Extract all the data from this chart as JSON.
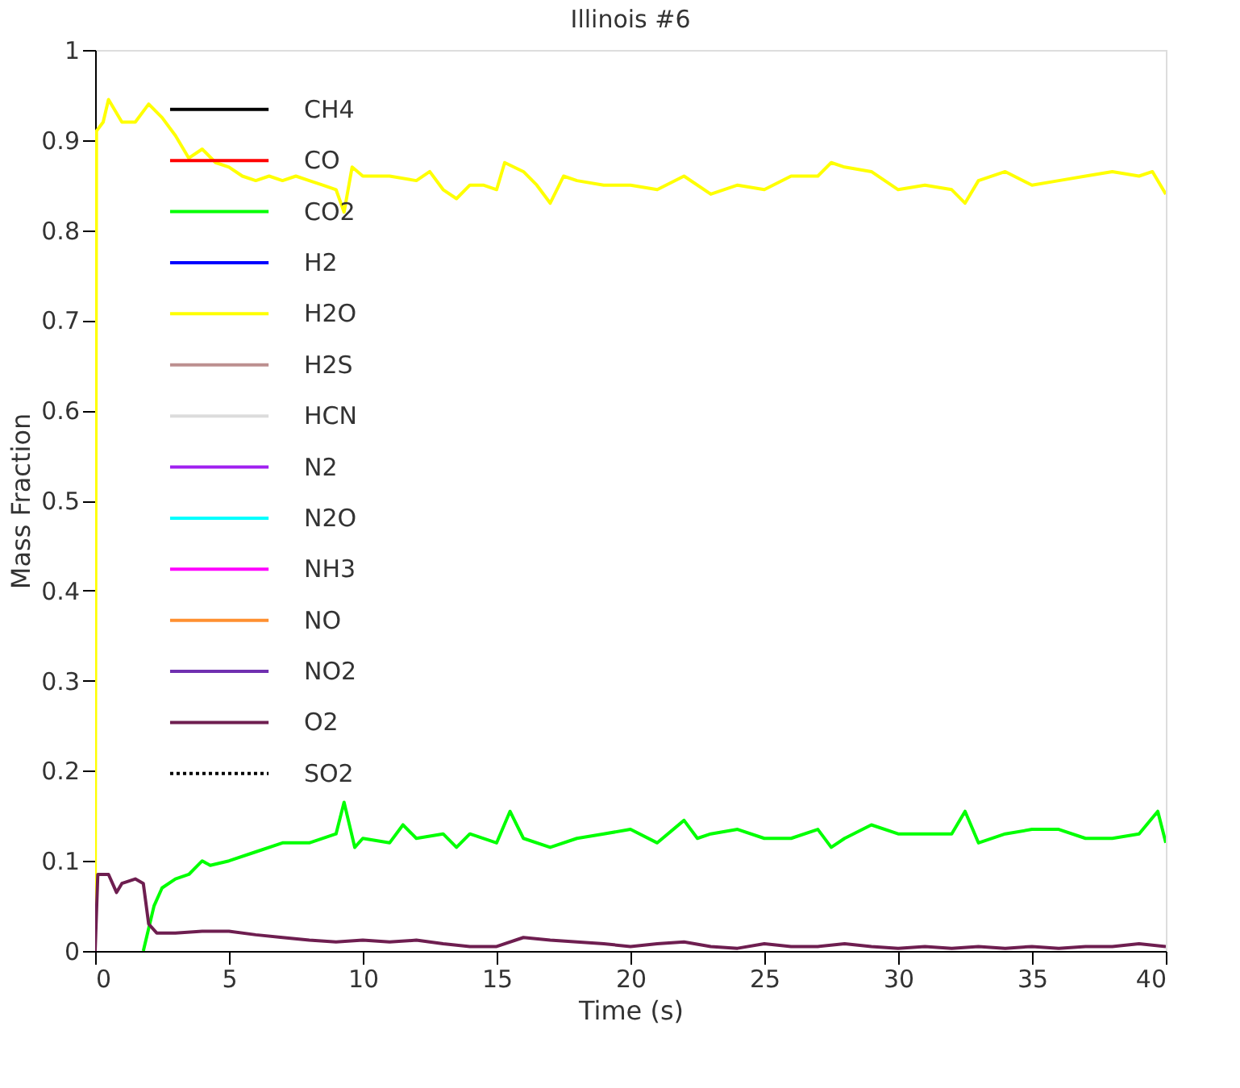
{
  "chart_data": {
    "type": "line",
    "title": "Illinois #6",
    "xlabel": "Time (s)",
    "ylabel": "Mass Fraction",
    "xlim": [
      0,
      40
    ],
    "xticks": [
      0,
      5,
      10,
      15,
      20,
      25,
      30,
      35,
      40
    ],
    "ylim": [
      0,
      1
    ],
    "yticks": [
      0,
      0.1,
      0.2,
      0.3,
      0.4,
      0.5,
      0.6,
      0.7,
      0.8,
      0.9,
      1
    ],
    "grid": false,
    "legend": "top left",
    "marker": "none",
    "series": [
      {
        "name": "CH4",
        "color": "#000000"
      },
      {
        "name": "CO",
        "color": "#ff0000"
      },
      {
        "name": "CO2",
        "color": "#00ff00",
        "x": [
          1.8,
          2.2,
          2.5,
          3,
          3.5,
          4,
          4.3,
          5,
          6,
          7,
          8,
          9,
          9.3,
          9.7,
          10,
          11,
          11.5,
          12,
          13,
          13.5,
          14,
          15,
          15.5,
          16,
          17,
          18,
          19,
          20,
          21,
          22,
          22.5,
          23,
          24,
          25,
          26,
          27,
          27.5,
          28,
          29,
          30,
          31,
          32,
          32.5,
          33,
          34,
          35,
          36,
          37,
          38,
          39,
          39.7,
          40
        ],
        "values": [
          0,
          0.05,
          0.07,
          0.08,
          0.085,
          0.1,
          0.095,
          0.1,
          0.11,
          0.12,
          0.12,
          0.13,
          0.165,
          0.115,
          0.125,
          0.12,
          0.14,
          0.125,
          0.13,
          0.115,
          0.13,
          0.12,
          0.155,
          0.125,
          0.115,
          0.125,
          0.13,
          0.135,
          0.12,
          0.145,
          0.125,
          0.13,
          0.135,
          0.125,
          0.125,
          0.135,
          0.115,
          0.125,
          0.14,
          0.13,
          0.13,
          0.13,
          0.155,
          0.12,
          0.13,
          0.135,
          0.135,
          0.125,
          0.125,
          0.13,
          0.155,
          0.12
        ]
      },
      {
        "name": "H2",
        "color": "#0000ff"
      },
      {
        "name": "H2O",
        "color": "#ffff00",
        "x": [
          0,
          0.05,
          0.3,
          0.5,
          1,
          1.5,
          2,
          2.5,
          3,
          3.5,
          4,
          4.5,
          5,
          5.5,
          6,
          6.5,
          7,
          7.5,
          8,
          8.5,
          9,
          9.3,
          9.6,
          10,
          11,
          12,
          12.5,
          13,
          13.5,
          14,
          14.5,
          15,
          15.3,
          16,
          16.5,
          17,
          17.5,
          18,
          19,
          20,
          21,
          22,
          23,
          24,
          25,
          26,
          27,
          27.5,
          28,
          29,
          30,
          31,
          32,
          32.5,
          33,
          34,
          35,
          36,
          37,
          38,
          39,
          39.5,
          40
        ],
        "values": [
          0,
          0.91,
          0.92,
          0.945,
          0.92,
          0.92,
          0.94,
          0.925,
          0.905,
          0.88,
          0.89,
          0.875,
          0.87,
          0.86,
          0.855,
          0.86,
          0.855,
          0.86,
          0.855,
          0.85,
          0.845,
          0.82,
          0.87,
          0.86,
          0.86,
          0.855,
          0.865,
          0.845,
          0.835,
          0.85,
          0.85,
          0.845,
          0.875,
          0.865,
          0.85,
          0.83,
          0.86,
          0.855,
          0.85,
          0.85,
          0.845,
          0.86,
          0.84,
          0.85,
          0.845,
          0.86,
          0.86,
          0.875,
          0.87,
          0.865,
          0.845,
          0.85,
          0.845,
          0.83,
          0.855,
          0.865,
          0.85,
          0.855,
          0.86,
          0.865,
          0.86,
          0.865,
          0.84
        ]
      },
      {
        "name": "H2S",
        "color": "#bc8f8f"
      },
      {
        "name": "HCN",
        "color": "#dcdcdc"
      },
      {
        "name": "N2",
        "color": "#a020f0"
      },
      {
        "name": "N2O",
        "color": "#00ffff"
      },
      {
        "name": "NH3",
        "color": "#ff00ff"
      },
      {
        "name": "NO",
        "color": "#ff9030"
      },
      {
        "name": "NO2",
        "color": "#7030b0"
      },
      {
        "name": "O2",
        "color": "#6e1e50",
        "x": [
          0,
          0.1,
          0.5,
          0.8,
          1,
          1.5,
          1.8,
          2,
          2.3,
          3,
          4,
          5,
          6,
          7,
          8,
          9,
          10,
          11,
          12,
          13,
          14,
          15,
          16,
          17,
          18,
          19,
          20,
          21,
          22,
          23,
          24,
          25,
          26,
          27,
          28,
          29,
          30,
          31,
          32,
          33,
          34,
          35,
          36,
          37,
          38,
          39,
          40
        ],
        "values": [
          0,
          0.085,
          0.085,
          0.065,
          0.075,
          0.08,
          0.075,
          0.03,
          0.02,
          0.02,
          0.022,
          0.022,
          0.018,
          0.015,
          0.012,
          0.01,
          0.012,
          0.01,
          0.012,
          0.008,
          0.005,
          0.005,
          0.015,
          0.012,
          0.01,
          0.008,
          0.005,
          0.008,
          0.01,
          0.005,
          0.003,
          0.008,
          0.005,
          0.005,
          0.008,
          0.005,
          0.003,
          0.005,
          0.003,
          0.005,
          0.003,
          0.005,
          0.003,
          0.005,
          0.005,
          0.008,
          0.005
        ]
      },
      {
        "name": "SO2",
        "color": "#000000",
        "line_style": "dotted"
      }
    ]
  }
}
